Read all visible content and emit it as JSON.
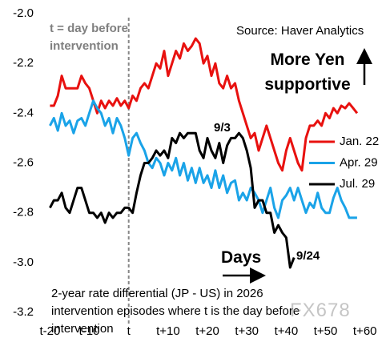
{
  "chart_data": {
    "type": "line",
    "x": [
      -20,
      -19,
      -18,
      -17,
      -16,
      -15,
      -14,
      -13,
      -12,
      -11,
      -10,
      -9,
      -8,
      -7,
      -6,
      -5,
      -4,
      -3,
      -2,
      -1,
      0,
      1,
      2,
      3,
      4,
      5,
      6,
      7,
      8,
      9,
      10,
      11,
      12,
      13,
      14,
      15,
      16,
      17,
      18,
      19,
      20,
      21,
      22,
      23,
      24,
      25,
      26,
      27,
      28,
      29,
      30,
      31,
      32,
      33,
      34,
      35,
      36,
      37,
      38,
      39,
      40,
      41,
      42,
      43,
      44,
      45,
      46,
      47,
      48,
      49,
      50,
      51,
      52,
      53,
      54,
      55,
      56,
      57,
      58
    ],
    "series": [
      {
        "name": "Jan. 22",
        "color": "#e8110f",
        "values": [
          -2.37,
          -2.37,
          -2.33,
          -2.25,
          -2.3,
          -2.3,
          -2.3,
          -2.3,
          -2.25,
          -2.28,
          -2.3,
          -2.35,
          -2.4,
          -2.35,
          -2.38,
          -2.35,
          -2.37,
          -2.34,
          -2.37,
          -2.35,
          -2.38,
          -2.33,
          -2.35,
          -2.3,
          -2.28,
          -2.3,
          -2.25,
          -2.2,
          -2.22,
          -2.15,
          -2.25,
          -2.2,
          -2.15,
          -2.18,
          -2.12,
          -2.15,
          -2.13,
          -2.1,
          -2.12,
          -2.2,
          -2.17,
          -2.25,
          -2.2,
          -2.28,
          -2.3,
          -2.25,
          -2.3,
          -2.28,
          -2.35,
          -2.4,
          -2.45,
          -2.5,
          -2.48,
          -2.55,
          -2.5,
          -2.45,
          -2.5,
          -2.55,
          -2.6,
          -2.63,
          -2.55,
          -2.5,
          -2.55,
          -2.6,
          -2.63,
          -2.5,
          -2.45,
          -2.45,
          -2.43,
          -2.45,
          -2.4,
          -2.42,
          -2.38,
          -2.4,
          -2.37,
          -2.38,
          -2.36,
          -2.38,
          -2.4
        ]
      },
      {
        "name": "Apr. 29",
        "color": "#1aa3e8",
        "values": [
          -2.45,
          -2.42,
          -2.47,
          -2.4,
          -2.45,
          -2.43,
          -2.48,
          -2.43,
          -2.42,
          -2.45,
          -2.4,
          -2.35,
          -2.38,
          -2.4,
          -2.45,
          -2.42,
          -2.48,
          -2.42,
          -2.45,
          -2.5,
          -2.57,
          -2.5,
          -2.48,
          -2.52,
          -2.55,
          -2.6,
          -2.62,
          -2.58,
          -2.6,
          -2.65,
          -2.6,
          -2.63,
          -2.58,
          -2.65,
          -2.6,
          -2.67,
          -2.62,
          -2.68,
          -2.62,
          -2.68,
          -2.65,
          -2.7,
          -2.63,
          -2.7,
          -2.65,
          -2.72,
          -2.68,
          -2.67,
          -2.75,
          -2.72,
          -2.75,
          -2.7,
          -2.72,
          -2.75,
          -2.8,
          -2.75,
          -2.7,
          -2.78,
          -2.82,
          -2.75,
          -2.73,
          -2.7,
          -2.75,
          -2.7,
          -2.75,
          -2.8,
          -2.76,
          -2.78,
          -2.72,
          -2.78,
          -2.8,
          -2.8,
          -2.74,
          -2.7,
          -2.75,
          -2.78,
          -2.82,
          -2.82,
          -2.82
        ]
      },
      {
        "name": "Jul. 29",
        "color": "#000000",
        "values": [
          -2.78,
          -2.75,
          -2.75,
          -2.72,
          -2.78,
          -2.8,
          -2.75,
          -2.7,
          -2.7,
          -2.75,
          -2.8,
          -2.8,
          -2.82,
          -2.8,
          -2.84,
          -2.8,
          -2.82,
          -2.8,
          -2.8,
          -2.78,
          -2.78,
          -2.8,
          -2.72,
          -2.65,
          -2.6,
          -2.6,
          -2.58,
          -2.55,
          -2.57,
          -2.55,
          -2.58,
          -2.5,
          -2.52,
          -2.48,
          -2.5,
          -2.48,
          -2.48,
          -2.48,
          -2.55,
          -2.58,
          -2.5,
          -2.55,
          -2.58,
          -2.52,
          -2.6,
          -2.53,
          -2.5,
          -2.5,
          -2.48,
          -2.5,
          -2.55,
          -2.62,
          -2.78,
          -2.75,
          -2.75,
          -2.8,
          -2.8,
          -2.88,
          -2.85,
          -2.88,
          -2.9,
          -3.02,
          -2.98,
          null,
          null,
          null,
          null,
          null,
          null,
          null,
          null,
          null,
          null,
          null,
          null,
          null,
          null,
          null,
          null
        ]
      }
    ],
    "xlim": [
      -21.5,
      62.5
    ],
    "xticks": [
      {
        "value": -20,
        "label": "t-20"
      },
      {
        "value": -10,
        "label": "t-10"
      },
      {
        "value": 0,
        "label": "t"
      },
      {
        "value": 10,
        "label": "t+10"
      },
      {
        "value": 20,
        "label": "t+20"
      },
      {
        "value": 30,
        "label": "t+30"
      },
      {
        "value": 40,
        "label": "t+40"
      },
      {
        "value": 50,
        "label": "t+50"
      },
      {
        "value": 60,
        "label": "t+60"
      }
    ],
    "ylim": [
      -3.2,
      -2.0
    ],
    "yticks": [
      {
        "value": -2.0,
        "label": "-2.0"
      },
      -2.2,
      -2.4,
      -2.6,
      -2.8,
      {
        "value": -3.0,
        "label": "-3.0"
      },
      -3.2
    ],
    "reference_line_x": 0,
    "legend": "right",
    "source": "Source: Haver Analytics",
    "annotations": {
      "reference_note": "t = day before intervention",
      "direction": "More Yen supportive",
      "date_start": "9/3",
      "date_end": "9/24",
      "days": "Days",
      "caption": "2-year rate differential (JP - US) in 2026 intervention episodes where t is the day before intervention",
      "watermark": "FX678"
    }
  }
}
